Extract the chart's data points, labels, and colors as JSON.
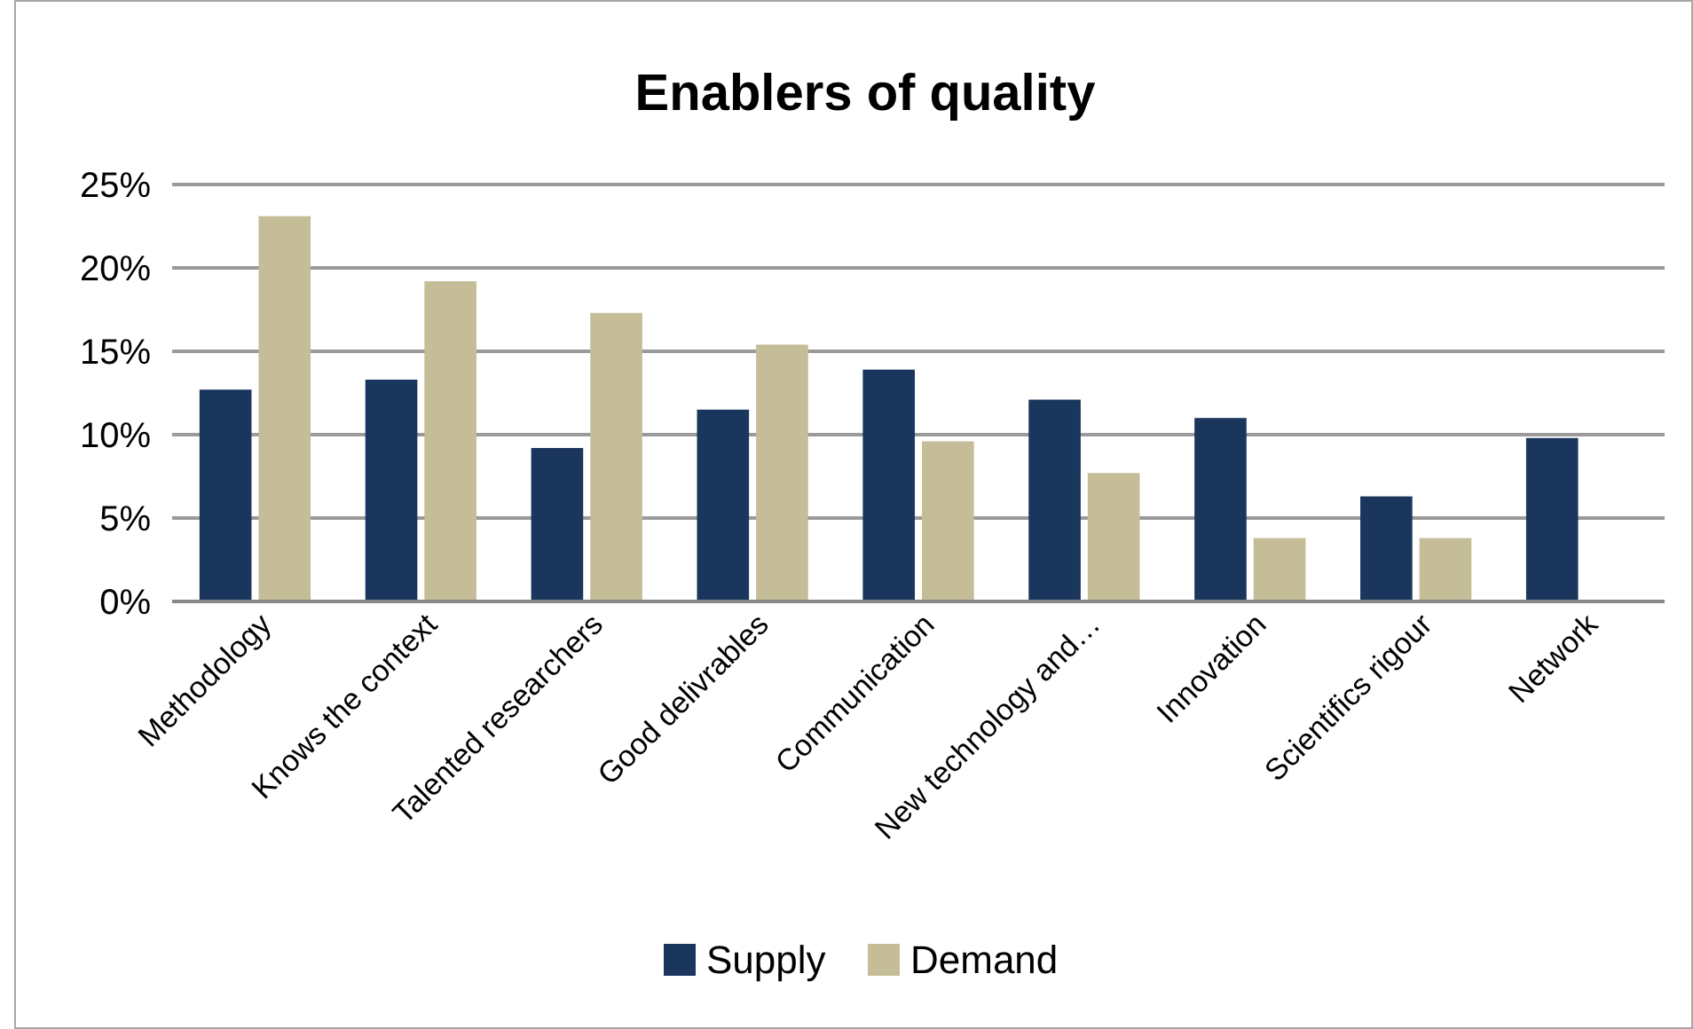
{
  "chart_data": {
    "type": "bar",
    "title": "Enablers of quality",
    "categories": [
      "Methodology",
      "Knows the context",
      "Talented researchers",
      "Good delivrables",
      "Communication",
      "New technology and…",
      "Innovation",
      "Scientifics rigour",
      "Network"
    ],
    "series": [
      {
        "name": "Supply",
        "color": "#1a365d",
        "values": [
          12.7,
          13.3,
          9.2,
          11.5,
          13.9,
          12.1,
          11.0,
          6.3,
          9.8
        ]
      },
      {
        "name": "Demand",
        "color": "#c4bd97",
        "values": [
          23.1,
          19.2,
          17.3,
          15.4,
          9.6,
          7.7,
          3.8,
          3.8,
          0
        ]
      }
    ],
    "ylim": [
      0,
      25
    ],
    "yticks": [
      {
        "value": 0,
        "label": "0%"
      },
      {
        "value": 5,
        "label": "5%"
      },
      {
        "value": 10,
        "label": "10%"
      },
      {
        "value": 15,
        "label": "15%"
      },
      {
        "value": 20,
        "label": "20%"
      },
      {
        "value": 25,
        "label": "25%"
      }
    ],
    "grid": "y",
    "legend": "bottom"
  }
}
